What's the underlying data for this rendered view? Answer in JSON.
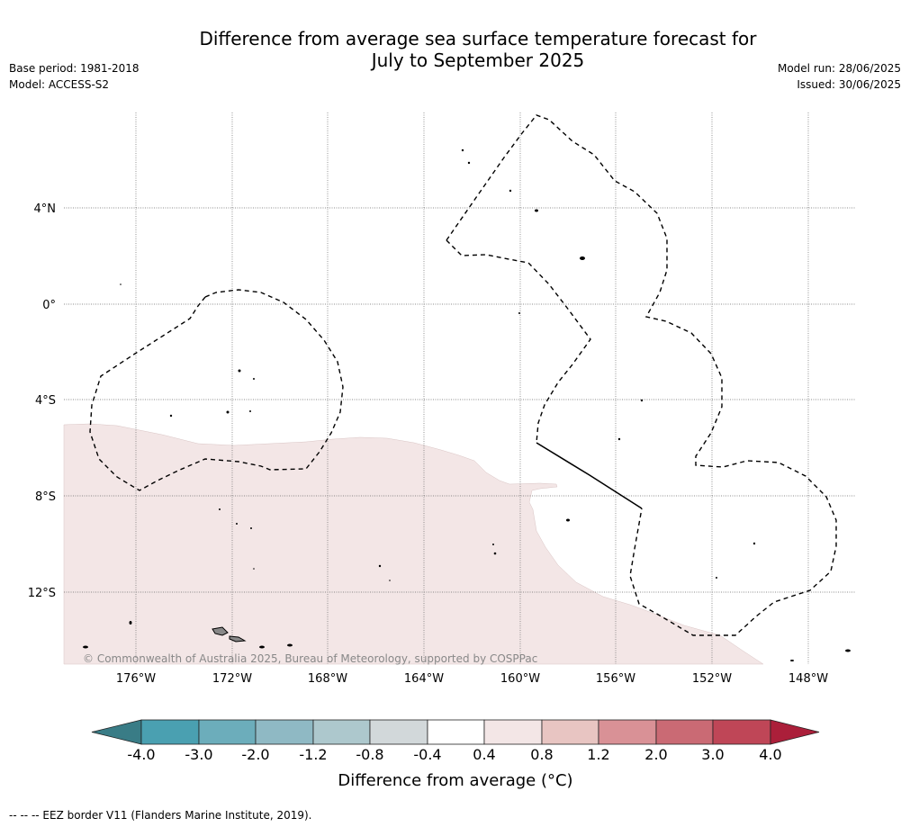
{
  "header": {
    "title_line1": "Difference from average sea surface temperature forecast for",
    "title_line2": "July to September 2025",
    "base_period": "Base period: 1981-2018",
    "model": "Model: ACCESS-S2",
    "model_run": "Model run: 28/06/2025",
    "issued": "Issued: 30/06/2025"
  },
  "map": {
    "lat_labels": [
      "4°N",
      "0°",
      "4°S",
      "8°S",
      "12°S"
    ],
    "lon_labels": [
      "176°W",
      "172°W",
      "168°W",
      "164°W",
      "160°W",
      "156°W",
      "152°W",
      "148°W"
    ],
    "copyright": "© Commonwealth of Australia 2025, Bureau of Meteorology, supported by COSPPac",
    "anomaly_fill": "#f3e6e6",
    "land_fill": "#888888"
  },
  "colorbar": {
    "title": "Difference from average (°C)",
    "tick_labels": [
      "-4.0",
      "-3.0",
      "-2.0",
      "-1.2",
      "-0.8",
      "-0.4",
      "0.4",
      "0.8",
      "1.2",
      "2.0",
      "3.0",
      "4.0"
    ],
    "colors": [
      "#397c86",
      "#4aa0b1",
      "#6cadbb",
      "#8fb9c4",
      "#adc8cd",
      "#d2d8da",
      "#ffffff",
      "#f3e6e6",
      "#e8c5c2",
      "#d99196",
      "#ca6a74",
      "#bf4657",
      "#ab1f3a"
    ]
  },
  "footer": {
    "legend_note": "--  --  -- EEZ border V11 (Flanders Marine Institute, 2019)."
  }
}
